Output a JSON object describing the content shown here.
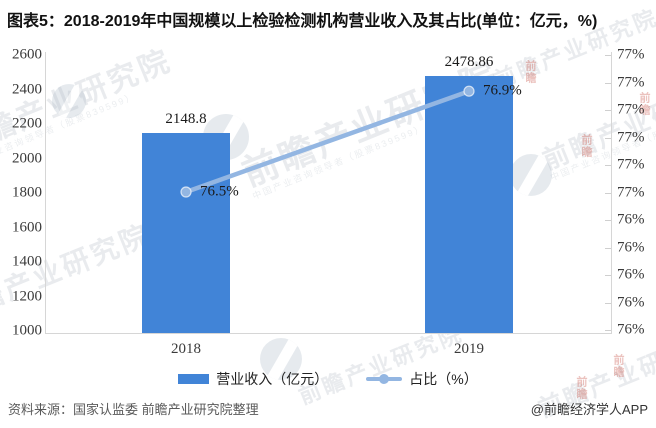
{
  "title": "图表5：2018-2019年中国规模以上检验检测机构营业收入及其占比(单位：亿元，%)",
  "chart_data": {
    "type": "bar+line",
    "title": "图表5：2018-2019年中国规模以上检验检测机构营业收入及其占比(单位：亿元，%)",
    "categories": [
      "2018",
      "2019"
    ],
    "series": [
      {
        "name": "营业收入（亿元）",
        "type": "bar",
        "axis": "left",
        "values": [
          2148.8,
          2478.86
        ],
        "labels": [
          "2148.8",
          "2478.86"
        ]
      },
      {
        "name": "占比（%）",
        "type": "line",
        "axis": "right",
        "values": [
          76.5,
          76.9
        ],
        "labels": [
          "76.5%",
          "76.9%"
        ]
      }
    ],
    "y_left": {
      "min": 1000,
      "max": 2600,
      "step": 200,
      "ticks": [
        "2600",
        "2400",
        "2200",
        "2000",
        "1800",
        "1600",
        "1400",
        "1200",
        "1000"
      ]
    },
    "y_right": {
      "min": 76,
      "max": 77,
      "step": 0.1,
      "ticks": [
        "77%",
        "77%",
        "77%",
        "77%",
        "77%",
        "77%",
        "76%",
        "76%",
        "76%",
        "76%",
        "76%"
      ]
    },
    "xlabel": "",
    "ylabel": "",
    "grid": false,
    "legend_position": "bottom"
  },
  "legend": {
    "items": [
      {
        "label": "营业收入（亿元）",
        "type": "bar"
      },
      {
        "label": "占比（%）",
        "type": "line"
      }
    ]
  },
  "footer": {
    "source": "资料来源：国家认监委 前瞻产业研究院整理",
    "credit": "@前瞻经济学人APP"
  },
  "watermark": {
    "brand": "前瞻产业研究院",
    "sub": "中国产业咨询领导者（股票839599）",
    "accent": "前瞻"
  },
  "colors": {
    "bar": "#4184d7",
    "line": "#93b6e2",
    "axis": "#d6d6d6",
    "tick_text": "#3a3a3a",
    "label_text": "#1a1a1a",
    "source_text": "#595959",
    "credit_text": "#333333",
    "watermark_gray": "#93a0ad",
    "watermark_red": "#c0392b"
  }
}
